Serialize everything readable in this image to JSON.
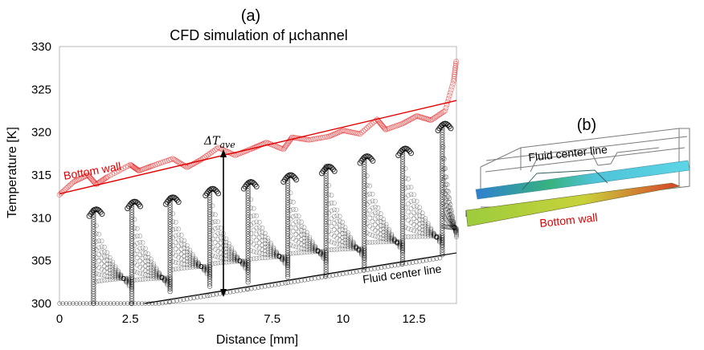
{
  "panel_a": {
    "label": "(a)",
    "annotations": {
      "bottom_wall": "Bottom wall",
      "fluid_center_line": "Fluid center line",
      "delta_t": "ΔT",
      "delta_t_sub": "ave"
    }
  },
  "panel_b": {
    "label": "(b)",
    "fluid_center_line": "Fluid center line",
    "bottom_wall": "Bottom wall"
  },
  "colors": {
    "wall": "#e00000",
    "fluid": "#000000",
    "fluid_band": "#3fb5c8",
    "wall_band_start": "#9ccc3c",
    "wall_band_end": "#d8402a"
  },
  "chart_data": {
    "type": "scatter",
    "title": "CFD simulation of µchannel",
    "xlabel": "Distance [mm]",
    "ylabel": "Temperature [K]",
    "xlim": [
      0,
      14
    ],
    "ylim": [
      300,
      330
    ],
    "xticks": [
      0,
      2.5,
      5,
      7.5,
      10,
      12.5
    ],
    "xtick_labels": [
      "0",
      "2.5",
      "5",
      "7.5",
      "10",
      "12.5"
    ],
    "yticks": [
      300,
      305,
      310,
      315,
      320,
      325,
      330
    ],
    "ytick_labels": [
      "300",
      "305",
      "310",
      "315",
      "320",
      "325",
      "330"
    ],
    "grid": false,
    "series": [
      {
        "name": "Bottom wall",
        "kind": "linear fit",
        "x": [
          0,
          14
        ],
        "y": [
          312.8,
          323.7
        ]
      },
      {
        "name": "Fluid center line",
        "kind": "linear fit",
        "x": [
          3,
          14
        ],
        "y": [
          300,
          305.9
        ]
      },
      {
        "name": "Bottom wall",
        "kind": "scatter",
        "x": [
          0,
          0.5,
          1.0,
          1.3,
          1.7,
          2.5,
          2.8,
          3.3,
          4.0,
          4.5,
          5.0,
          5.6,
          6.2,
          6.8,
          7.3,
          7.9,
          8.2,
          8.8,
          9.5,
          10.0,
          10.6,
          11.2,
          11.5,
          12.1,
          12.6,
          13.1,
          13.6,
          13.9,
          14.0
        ],
        "y": [
          312.7,
          314.2,
          315.0,
          313.9,
          314.8,
          316.2,
          315.5,
          316.1,
          316.9,
          315.9,
          316.8,
          318.2,
          317.3,
          318.1,
          318.8,
          318.0,
          319.4,
          319.1,
          319.5,
          320.2,
          319.8,
          321.5,
          320.3,
          321.0,
          321.9,
          321.4,
          322.5,
          326.0,
          328.5
        ]
      }
    ],
    "fluid_scatter": {
      "fin_x": [
        1.2,
        2.55,
        3.9,
        5.3,
        6.65,
        8.05,
        9.4,
        10.75,
        12.1,
        13.5
      ],
      "fin_peak": [
        311.0,
        311.9,
        312.4,
        313.4,
        314.2,
        315.0,
        316.0,
        317.2,
        318.1,
        321.0
      ],
      "ribbons": 8,
      "baseline": [
        300.0,
        300.0,
        301.4,
        302.0,
        302.5,
        303.1,
        303.4,
        304.2,
        304.8,
        305.7
      ]
    }
  }
}
